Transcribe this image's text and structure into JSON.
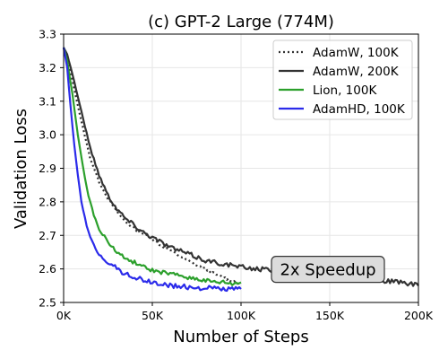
{
  "chart_data": {
    "type": "line",
    "title": "(c) GPT-2 Large (774M)",
    "xlabel": "Number of Steps",
    "ylabel": "Validation Loss",
    "xlim": [
      0,
      200000
    ],
    "ylim": [
      2.5,
      3.3
    ],
    "x_ticks": [
      {
        "value": 0,
        "label": "0K"
      },
      {
        "value": 50000,
        "label": "50K"
      },
      {
        "value": 100000,
        "label": "100K"
      },
      {
        "value": 150000,
        "label": "150K"
      },
      {
        "value": 200000,
        "label": "200K"
      }
    ],
    "y_ticks": [
      {
        "value": 2.5,
        "label": "2.5"
      },
      {
        "value": 2.6,
        "label": "2.6"
      },
      {
        "value": 2.7,
        "label": "2.7"
      },
      {
        "value": 2.8,
        "label": "2.8"
      },
      {
        "value": 2.9,
        "label": "2.9"
      },
      {
        "value": 3.0,
        "label": "3.0"
      },
      {
        "value": 3.1,
        "label": "3.1"
      },
      {
        "value": 3.2,
        "label": "3.2"
      },
      {
        "value": 3.3,
        "label": "3.3"
      }
    ],
    "grid": true,
    "legend_position": "top-right",
    "series": [
      {
        "name": "AdamW, 100K",
        "color": "#333333",
        "style": "dotted",
        "x": [
          0,
          2000,
          5000,
          10000,
          15000,
          20000,
          25000,
          30000,
          35000,
          40000,
          45000,
          50000,
          55000,
          60000,
          65000,
          70000,
          75000,
          80000,
          85000,
          90000,
          95000,
          100000
        ],
        "y": [
          3.26,
          3.23,
          3.16,
          3.04,
          2.93,
          2.86,
          2.81,
          2.77,
          2.74,
          2.72,
          2.705,
          2.69,
          2.67,
          2.655,
          2.64,
          2.625,
          2.61,
          2.6,
          2.585,
          2.575,
          2.565,
          2.555
        ]
      },
      {
        "name": "AdamW, 200K",
        "color": "#333333",
        "style": "solid",
        "x": [
          0,
          2000,
          5000,
          10000,
          15000,
          20000,
          25000,
          30000,
          35000,
          40000,
          45000,
          50000,
          55000,
          60000,
          65000,
          70000,
          75000,
          80000,
          85000,
          90000,
          95000,
          100000,
          110000,
          120000,
          130000,
          140000,
          150000,
          160000,
          170000,
          180000,
          190000,
          200000
        ],
        "y": [
          3.26,
          3.24,
          3.18,
          3.07,
          2.96,
          2.88,
          2.82,
          2.78,
          2.75,
          2.73,
          2.71,
          2.695,
          2.68,
          2.665,
          2.655,
          2.645,
          2.635,
          2.625,
          2.62,
          2.615,
          2.61,
          2.605,
          2.6,
          2.595,
          2.59,
          2.585,
          2.58,
          2.575,
          2.57,
          2.565,
          2.56,
          2.55
        ]
      },
      {
        "name": "Lion, 100K",
        "color": "#2ca02c",
        "style": "solid",
        "x": [
          0,
          2000,
          5000,
          8000,
          11000,
          14000,
          17000,
          20000,
          25000,
          30000,
          35000,
          40000,
          45000,
          50000,
          55000,
          60000,
          65000,
          70000,
          75000,
          80000,
          85000,
          90000,
          95000,
          100000
        ],
        "y": [
          3.26,
          3.22,
          3.12,
          3.0,
          2.9,
          2.82,
          2.76,
          2.72,
          2.68,
          2.65,
          2.63,
          2.62,
          2.605,
          2.595,
          2.59,
          2.585,
          2.58,
          2.575,
          2.57,
          2.565,
          2.56,
          2.56,
          2.555,
          2.56
        ]
      },
      {
        "name": "AdamHD, 100K",
        "color": "#2b2bea",
        "style": "solid",
        "x": [
          0,
          2000,
          4000,
          6000,
          8000,
          10000,
          12000,
          14000,
          17000,
          20000,
          25000,
          30000,
          35000,
          40000,
          45000,
          50000,
          55000,
          60000,
          65000,
          70000,
          75000,
          80000,
          85000,
          90000,
          95000,
          100000
        ],
        "y": [
          3.26,
          3.2,
          3.08,
          2.97,
          2.88,
          2.8,
          2.75,
          2.71,
          2.67,
          2.645,
          2.62,
          2.6,
          2.585,
          2.575,
          2.565,
          2.56,
          2.555,
          2.55,
          2.548,
          2.545,
          2.545,
          2.543,
          2.542,
          2.54,
          2.54,
          2.54
        ]
      }
    ],
    "annotations": [
      {
        "text": "2x Speedup",
        "x": 150000,
        "y": 2.6
      }
    ]
  }
}
